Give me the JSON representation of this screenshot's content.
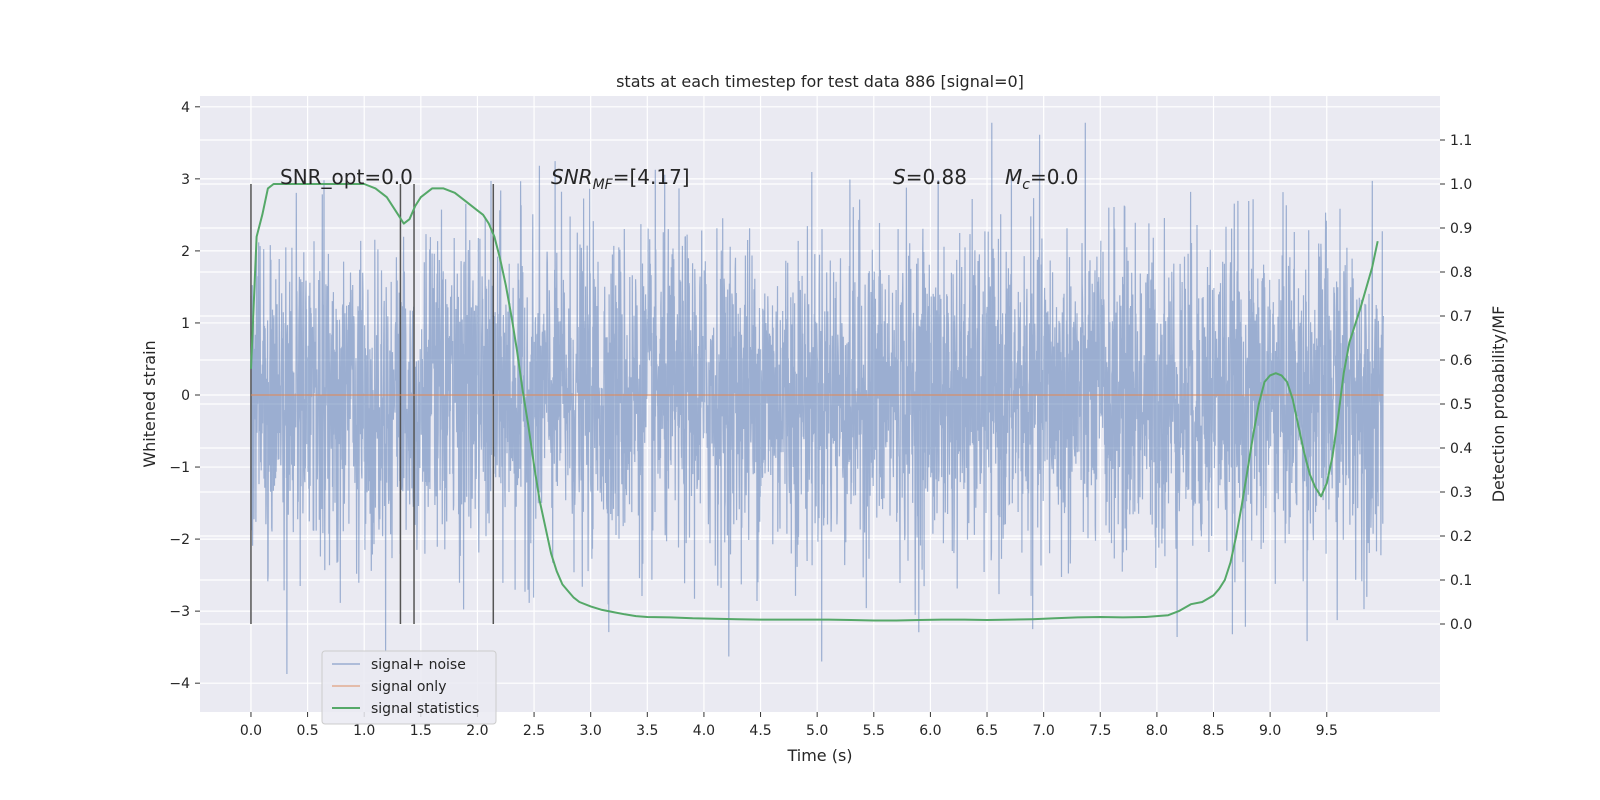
{
  "chart_data": {
    "type": "line",
    "title": "stats at each timestep for test data 886 [signal=0]",
    "xlabel": "Time (s)",
    "ylabel": "Whitened strain",
    "y2label": "Detection probability/MF",
    "xlim": [
      -0.45,
      10.5
    ],
    "ylim": [
      -4.4,
      4.15
    ],
    "y2lim": [
      -0.2,
      1.2
    ],
    "grid": true,
    "legend_position": "lower-left",
    "x_ticks": [
      "0.0",
      "0.5",
      "1.0",
      "1.5",
      "2.0",
      "2.5",
      "3.0",
      "3.5",
      "4.0",
      "4.5",
      "5.0",
      "5.5",
      "6.0",
      "6.5",
      "7.0",
      "7.5",
      "8.0",
      "8.5",
      "9.0",
      "9.5"
    ],
    "y_ticks": [
      "4",
      "3",
      "2",
      "1",
      "0",
      "−1",
      "−2",
      "−3",
      "−4"
    ],
    "y2_ticks": [
      "1.1",
      "1.0",
      "0.9",
      "0.8",
      "0.7",
      "0.6",
      "0.5",
      "0.4",
      "0.3",
      "0.2",
      "0.1",
      "0.0"
    ],
    "annotations": {
      "snr_opt": "SNR_opt=0.0",
      "snr_mf_main": "SNR",
      "snr_mf_sub": "MF",
      "snr_mf_value": "=[4.17]",
      "s_symbol": "S",
      "s_value": "=0.88",
      "mc_symbol": "M",
      "mc_sub": "c",
      "mc_value": "=0.0"
    },
    "vertical_markers_x": [
      0.0,
      1.32,
      1.44,
      2.14
    ],
    "series": [
      {
        "name": "signal+ noise",
        "color": "#4c72b0",
        "x_range": [
          0.0,
          10.0
        ],
        "y_range": [
          -3.95,
          3.78
        ],
        "typical_amplitude": 1.75,
        "note_values": []
      },
      {
        "name": "signal only",
        "color": "#dd8452",
        "x": [
          0.0,
          10.0
        ],
        "y": [
          0.0,
          0.0
        ]
      },
      {
        "name": "signal statistics",
        "color": "#55a868",
        "axis": "right",
        "x": [
          0.0,
          0.05,
          0.1,
          0.15,
          0.2,
          0.3,
          0.5,
          0.7,
          0.9,
          1.0,
          1.1,
          1.2,
          1.3,
          1.35,
          1.4,
          1.45,
          1.5,
          1.6,
          1.7,
          1.8,
          1.9,
          2.0,
          2.05,
          2.1,
          2.15,
          2.2,
          2.25,
          2.3,
          2.35,
          2.4,
          2.45,
          2.5,
          2.55,
          2.6,
          2.65,
          2.7,
          2.75,
          2.8,
          2.85,
          2.9,
          3.0,
          3.1,
          3.2,
          3.3,
          3.4,
          3.5,
          3.7,
          3.9,
          4.1,
          4.3,
          4.5,
          4.7,
          4.9,
          5.1,
          5.3,
          5.5,
          5.7,
          5.9,
          6.1,
          6.3,
          6.5,
          6.7,
          6.9,
          7.1,
          7.3,
          7.5,
          7.7,
          7.9,
          8.1,
          8.2,
          8.3,
          8.4,
          8.5,
          8.55,
          8.6,
          8.65,
          8.7,
          8.75,
          8.8,
          8.85,
          8.9,
          8.95,
          9.0,
          9.05,
          9.1,
          9.15,
          9.2,
          9.25,
          9.3,
          9.35,
          9.4,
          9.45,
          9.5,
          9.55,
          9.6,
          9.65,
          9.7,
          9.8,
          9.9,
          9.95
        ],
        "y": [
          0.58,
          0.88,
          0.93,
          0.99,
          1.0,
          1.0,
          1.0,
          1.0,
          1.0,
          1.0,
          0.99,
          0.97,
          0.93,
          0.91,
          0.92,
          0.95,
          0.97,
          0.99,
          0.99,
          0.98,
          0.96,
          0.94,
          0.93,
          0.91,
          0.88,
          0.83,
          0.77,
          0.7,
          0.62,
          0.53,
          0.45,
          0.36,
          0.28,
          0.22,
          0.16,
          0.12,
          0.09,
          0.075,
          0.06,
          0.05,
          0.04,
          0.032,
          0.027,
          0.022,
          0.018,
          0.016,
          0.015,
          0.013,
          0.012,
          0.011,
          0.01,
          0.01,
          0.01,
          0.01,
          0.009,
          0.008,
          0.008,
          0.009,
          0.01,
          0.01,
          0.009,
          0.01,
          0.011,
          0.013,
          0.015,
          0.016,
          0.015,
          0.016,
          0.02,
          0.03,
          0.045,
          0.05,
          0.065,
          0.08,
          0.1,
          0.14,
          0.2,
          0.27,
          0.35,
          0.43,
          0.5,
          0.55,
          0.565,
          0.57,
          0.565,
          0.55,
          0.51,
          0.45,
          0.39,
          0.34,
          0.31,
          0.29,
          0.32,
          0.38,
          0.47,
          0.57,
          0.64,
          0.72,
          0.81,
          0.87
        ]
      }
    ]
  }
}
